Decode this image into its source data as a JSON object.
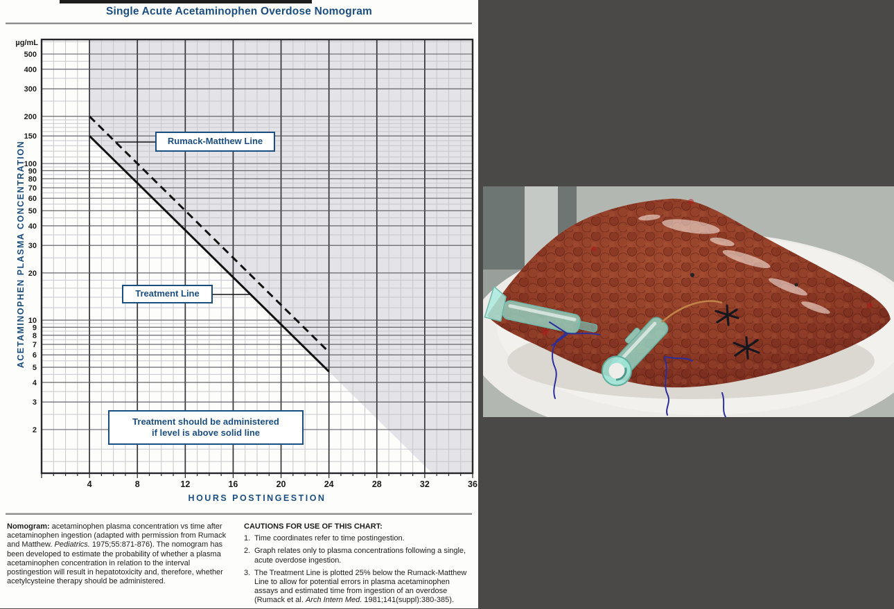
{
  "panel": {
    "bg_color": "#4a4947"
  },
  "header": {
    "title": "Single Acute Acetaminophen Overdose Nomogram"
  },
  "chart_data": {
    "type": "line",
    "title": "Single Acute Acetaminophen Overdose Nomogram",
    "xlabel": "HOURS POSTINGESTION",
    "ylabel": "ACETAMINOPHEN PLASMA CONCENTRATION",
    "y_unit": "µg/mL",
    "y_scale": "log",
    "xlim": [
      0,
      36
    ],
    "ylim": [
      1.05,
      620
    ],
    "x_ticks": [
      4,
      8,
      12,
      16,
      20,
      24,
      28,
      32,
      36
    ],
    "x_minor_step_hours": 1,
    "y_major_ticks": [
      500,
      400,
      300,
      200,
      150,
      100,
      90,
      80,
      70,
      60,
      50,
      40,
      30,
      20,
      10,
      9,
      8,
      7,
      6,
      5,
      4,
      3,
      2
    ],
    "y_minor_ticks": [
      600,
      450,
      350,
      250,
      190,
      180,
      170,
      160,
      140,
      130,
      120,
      110,
      95,
      85,
      75,
      65,
      55,
      45,
      35,
      25,
      18,
      16,
      14,
      12,
      9.5,
      8.5,
      7.5,
      6.5,
      5.5,
      4.5,
      3.5,
      2.5,
      1.5,
      1.25
    ],
    "series": [
      {
        "name": "Rumack-Matthew Line",
        "style": "dashed",
        "points": [
          [
            4,
            200
          ],
          [
            24,
            6.25
          ]
        ]
      },
      {
        "name": "Treatment Line",
        "style": "solid",
        "points": [
          [
            4,
            150
          ],
          [
            24,
            4.69
          ]
        ]
      }
    ],
    "shaded_region": {
      "follows": "Treatment Line",
      "start_hour": 4,
      "covers": "area above solid line, extended to chart bottom",
      "extended": true
    },
    "colors": {
      "shade": "#e4e4e8",
      "grid_light": "#c7c7cb",
      "grid_major_h": "#55555a",
      "grid_major_v": "#333338",
      "line": "#121212",
      "accent_blue": "#1b4e80"
    }
  },
  "callouts": {
    "rumack_label": "Rumack-Matthew Line",
    "treatment_label": "Treatment Line",
    "admin_line1": "Treatment should be administered",
    "admin_line2": "if level is above solid line"
  },
  "footnotes": {
    "left": {
      "lead": "Nomogram:",
      "pre": " acetaminophen plasma concentration vs time after acetaminophen ingestion (adapted with permission from Rumack and Matthew. ",
      "journal": "Pediatrics.",
      "post": " 1975;55:871-876). The nomogram has been developed to estimate the probability of whether a plasma acetaminophen concentration in relation to the interval postingestion will result in hepatotoxicity and, therefore, whether acetylcysteine therapy should be administered."
    },
    "cautions": {
      "heading": "CAUTIONS FOR USE OF THIS CHART:",
      "item1_num": "1.",
      "item1_text": "Time coordinates refer to time postingestion.",
      "item2_num": "2.",
      "item2_text": "Graph relates only to plasma concentrations following a single, acute overdose ingestion.",
      "item3_num": "3.",
      "item3_pre": "The Treatment Line is plotted 25% below the Rumack-Matthew Line to allow for potential errors in plasma acetaminophen assays and estimated time from ingestion of an overdose (Rumack et al. ",
      "item3_journal": "Arch Intern Med.",
      "item3_post": " 1981;141(suppl):380-385)."
    }
  },
  "photo_palette": {
    "organ_dark": "#6e241a",
    "organ_mid": "#8e3a26",
    "organ_light": "#a34b30",
    "plate": "#edece8",
    "bench_gray": "#8d9591",
    "catheter_teal": "#8fd8c6",
    "suture_blue": "#2b2f9e",
    "knot_black": "#16161e"
  }
}
